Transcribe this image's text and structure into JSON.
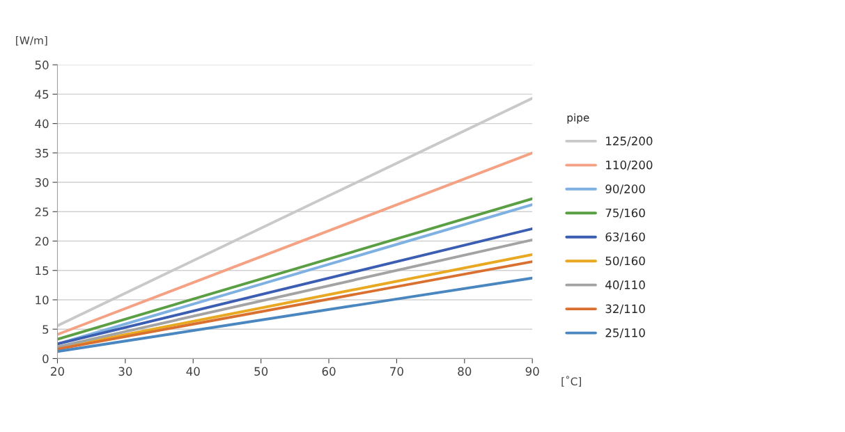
{
  "chart_data": {
    "type": "line",
    "xlabel": "[˚C]",
    "ylabel": "[W/m]",
    "legend_title": "pipe",
    "x": [
      20,
      90
    ],
    "xlim": [
      20,
      90
    ],
    "xticks": [
      20,
      30,
      40,
      50,
      60,
      70,
      80,
      90
    ],
    "ylim": [
      0,
      50
    ],
    "yticks": [
      0,
      5,
      10,
      15,
      20,
      25,
      30,
      35,
      40,
      45,
      50
    ],
    "grid": "y",
    "legend": "right",
    "marker": "none",
    "line_style": "solid",
    "series": [
      {
        "name": "125/200",
        "color": "#c9c9c9",
        "values": [
          5.6,
          44.3
        ]
      },
      {
        "name": "110/200",
        "color": "#f4a184",
        "values": [
          4.1,
          35.0
        ]
      },
      {
        "name": "90/200",
        "color": "#7eb1e2",
        "values": [
          2.5,
          26.2
        ]
      },
      {
        "name": "75/160",
        "color": "#5b9f45",
        "values": [
          3.3,
          27.2
        ]
      },
      {
        "name": "63/160",
        "color": "#3c5eb2",
        "values": [
          2.5,
          22.1
        ]
      },
      {
        "name": "50/160",
        "color": "#e9a822",
        "values": [
          1.8,
          17.7
        ]
      },
      {
        "name": "40/110",
        "color": "#a3a3a3",
        "values": [
          2.0,
          20.2
        ]
      },
      {
        "name": "32/110",
        "color": "#d9702f",
        "values": [
          1.6,
          16.5
        ]
      },
      {
        "name": "25/110",
        "color": "#4a87c0",
        "values": [
          1.2,
          13.7
        ]
      }
    ]
  }
}
